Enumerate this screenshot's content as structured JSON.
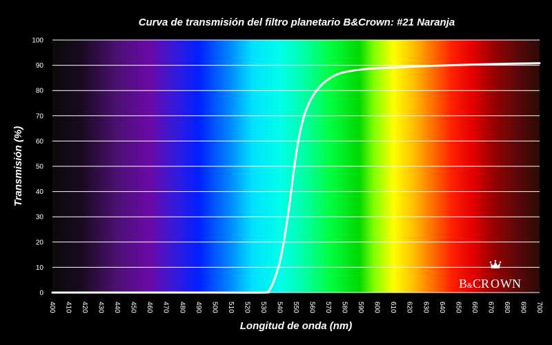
{
  "chart_data": {
    "type": "line",
    "title": "Curva de transmisión del filtro planetario B&Crown: #21 Naranja",
    "xlabel": "Longitud de onda (nm)",
    "ylabel": "Transmisión (%)",
    "xlim": [
      400,
      700
    ],
    "ylim": [
      0,
      100
    ],
    "x_ticks": [
      400,
      410,
      420,
      430,
      440,
      450,
      460,
      470,
      480,
      490,
      500,
      510,
      520,
      530,
      540,
      550,
      560,
      570,
      580,
      590,
      600,
      610,
      620,
      630,
      640,
      650,
      660,
      670,
      680,
      690,
      700
    ],
    "y_ticks": [
      0,
      10,
      20,
      30,
      40,
      50,
      60,
      70,
      80,
      90,
      100
    ],
    "grid": "horizontal",
    "background": "visible-spectrum",
    "line_color": "#ffffff",
    "series": [
      {
        "x": [
          400,
          500,
          530,
          533,
          536,
          540,
          543,
          546,
          549,
          552,
          555,
          558,
          561,
          564,
          567,
          570,
          575,
          580,
          590,
          600,
          620,
          640,
          660,
          680,
          700
        ],
        "y": [
          0,
          0,
          0,
          0.5,
          4,
          12,
          22,
          35,
          50,
          62,
          70,
          75,
          78.5,
          81,
          83,
          84.5,
          86.3,
          87.3,
          88.3,
          88.8,
          89.4,
          89.9,
          90.3,
          90.6,
          90.8
        ]
      }
    ]
  },
  "logo": {
    "text": "B&CROWN",
    "color": "#ffffff"
  }
}
